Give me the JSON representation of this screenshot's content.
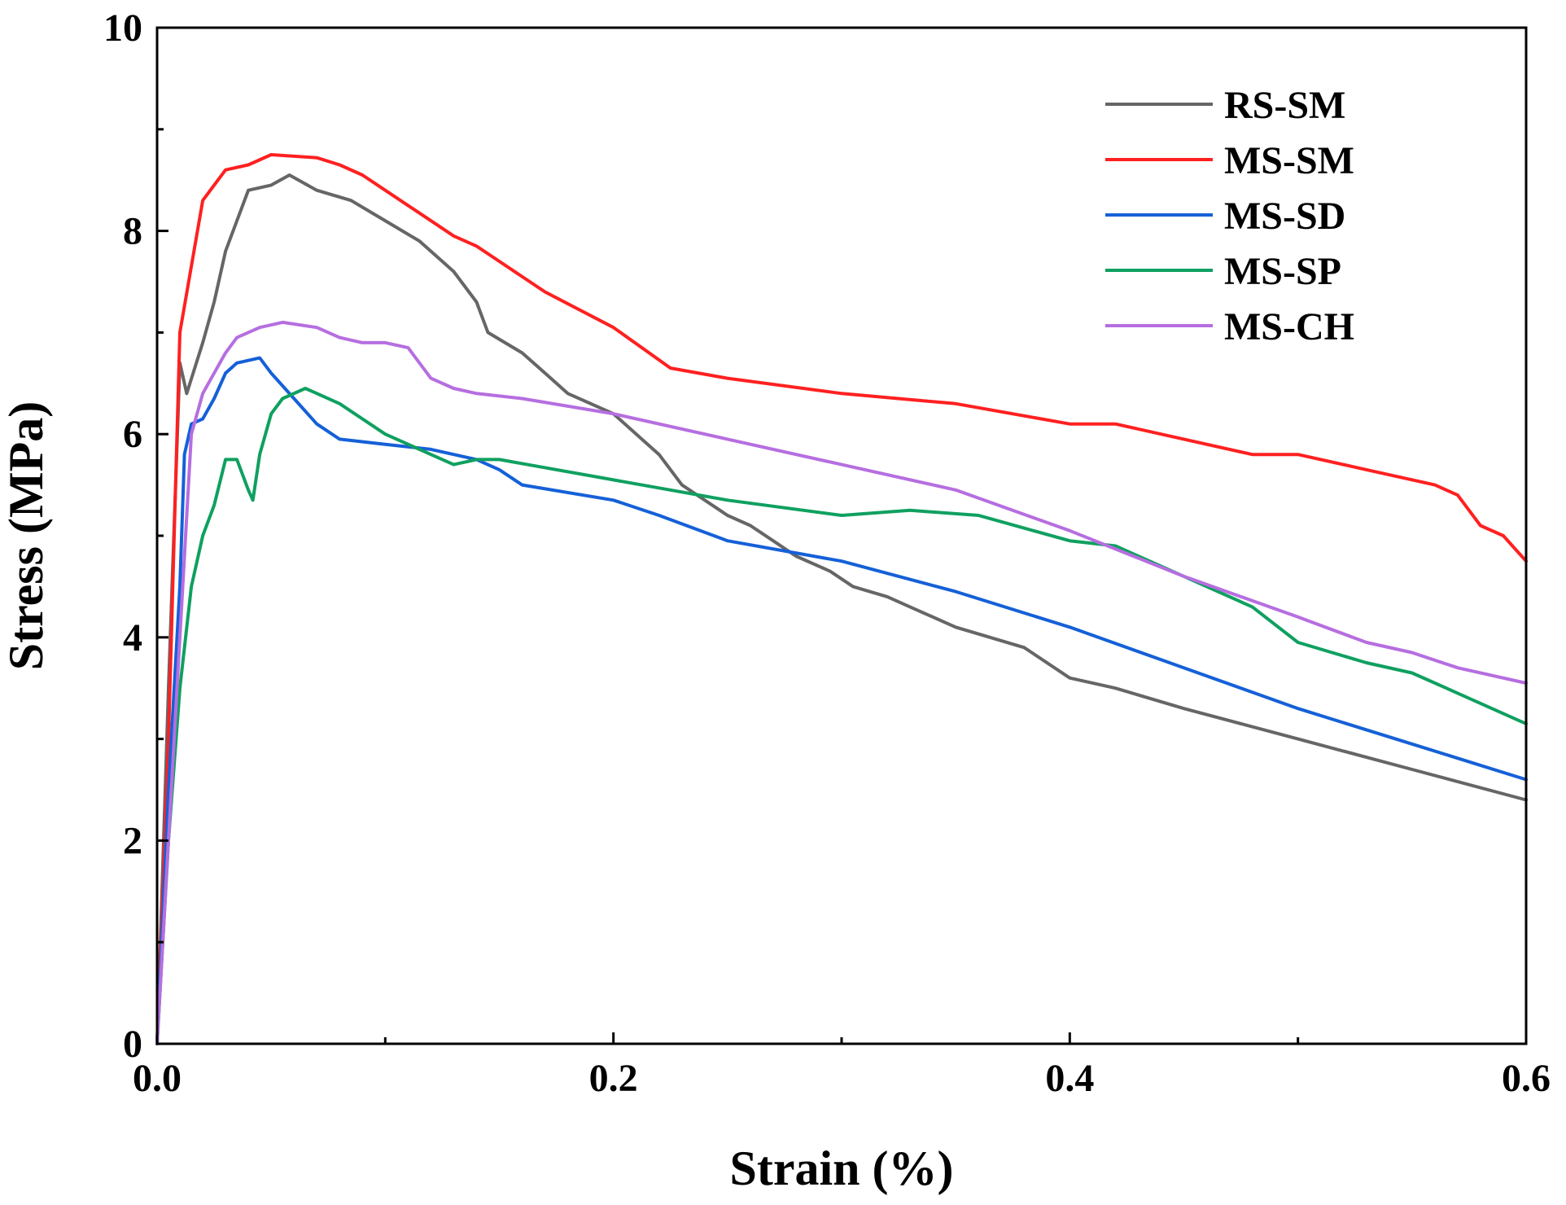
{
  "chart_data": {
    "type": "line",
    "title": "",
    "xlabel": "Strain (%)",
    "ylabel": "Stress (MPa)",
    "xlim": [
      0,
      0.6
    ],
    "ylim": [
      0,
      10
    ],
    "xticks": [
      0.0,
      0.2,
      0.4,
      0.6
    ],
    "xtick_labels": [
      "0.0",
      "0.2",
      "0.4",
      "0.6"
    ],
    "yticks": [
      0,
      2,
      4,
      6,
      8,
      10
    ],
    "ytick_labels": [
      "0",
      "2",
      "4",
      "6",
      "8",
      "10"
    ],
    "grid": false,
    "legend_position": "top-right",
    "series": [
      {
        "name": "RS-SM",
        "color": "#666666",
        "points": [
          [
            0,
            0
          ],
          [
            0.005,
            3.5
          ],
          [
            0.01,
            6.7
          ],
          [
            0.013,
            6.4
          ],
          [
            0.02,
            6.9
          ],
          [
            0.025,
            7.3
          ],
          [
            0.03,
            7.8
          ],
          [
            0.035,
            8.1
          ],
          [
            0.04,
            8.4
          ],
          [
            0.05,
            8.45
          ],
          [
            0.058,
            8.55
          ],
          [
            0.07,
            8.4
          ],
          [
            0.085,
            8.3
          ],
          [
            0.1,
            8.1
          ],
          [
            0.115,
            7.9
          ],
          [
            0.13,
            7.6
          ],
          [
            0.14,
            7.3
          ],
          [
            0.145,
            7.0
          ],
          [
            0.16,
            6.8
          ],
          [
            0.17,
            6.6
          ],
          [
            0.18,
            6.4
          ],
          [
            0.2,
            6.2
          ],
          [
            0.21,
            6.0
          ],
          [
            0.22,
            5.8
          ],
          [
            0.23,
            5.5
          ],
          [
            0.25,
            5.2
          ],
          [
            0.26,
            5.1
          ],
          [
            0.27,
            4.95
          ],
          [
            0.28,
            4.8
          ],
          [
            0.295,
            4.65
          ],
          [
            0.305,
            4.5
          ],
          [
            0.32,
            4.4
          ],
          [
            0.33,
            4.3
          ],
          [
            0.35,
            4.1
          ],
          [
            0.38,
            3.9
          ],
          [
            0.4,
            3.6
          ],
          [
            0.42,
            3.5
          ],
          [
            0.45,
            3.3
          ],
          [
            0.5,
            3.0
          ],
          [
            0.55,
            2.7
          ],
          [
            0.6,
            2.4
          ]
        ]
      },
      {
        "name": "MS-SM",
        "color": "#ff2020",
        "points": [
          [
            0,
            0
          ],
          [
            0.005,
            3.0
          ],
          [
            0.01,
            7.0
          ],
          [
            0.02,
            8.3
          ],
          [
            0.03,
            8.6
          ],
          [
            0.04,
            8.65
          ],
          [
            0.05,
            8.75
          ],
          [
            0.07,
            8.72
          ],
          [
            0.08,
            8.65
          ],
          [
            0.09,
            8.55
          ],
          [
            0.1,
            8.4
          ],
          [
            0.11,
            8.25
          ],
          [
            0.12,
            8.1
          ],
          [
            0.13,
            7.95
          ],
          [
            0.14,
            7.85
          ],
          [
            0.15,
            7.7
          ],
          [
            0.17,
            7.4
          ],
          [
            0.2,
            7.05
          ],
          [
            0.225,
            6.65
          ],
          [
            0.25,
            6.55
          ],
          [
            0.3,
            6.4
          ],
          [
            0.35,
            6.3
          ],
          [
            0.4,
            6.1
          ],
          [
            0.42,
            6.1
          ],
          [
            0.45,
            5.95
          ],
          [
            0.48,
            5.8
          ],
          [
            0.5,
            5.8
          ],
          [
            0.53,
            5.65
          ],
          [
            0.56,
            5.5
          ],
          [
            0.57,
            5.4
          ],
          [
            0.58,
            5.1
          ],
          [
            0.59,
            5.0
          ],
          [
            0.6,
            4.75
          ]
        ]
      },
      {
        "name": "MS-SD",
        "color": "#1560d8",
        "points": [
          [
            0,
            0
          ],
          [
            0.005,
            2.5
          ],
          [
            0.01,
            4.5
          ],
          [
            0.012,
            5.8
          ],
          [
            0.015,
            6.1
          ],
          [
            0.02,
            6.15
          ],
          [
            0.025,
            6.35
          ],
          [
            0.03,
            6.6
          ],
          [
            0.035,
            6.7
          ],
          [
            0.045,
            6.75
          ],
          [
            0.05,
            6.6
          ],
          [
            0.06,
            6.35
          ],
          [
            0.07,
            6.1
          ],
          [
            0.08,
            5.95
          ],
          [
            0.1,
            5.9
          ],
          [
            0.12,
            5.85
          ],
          [
            0.14,
            5.75
          ],
          [
            0.15,
            5.65
          ],
          [
            0.16,
            5.5
          ],
          [
            0.2,
            5.35
          ],
          [
            0.22,
            5.2
          ],
          [
            0.25,
            4.95
          ],
          [
            0.3,
            4.75
          ],
          [
            0.35,
            4.45
          ],
          [
            0.4,
            4.1
          ],
          [
            0.45,
            3.7
          ],
          [
            0.5,
            3.3
          ],
          [
            0.55,
            2.95
          ],
          [
            0.6,
            2.6
          ]
        ]
      },
      {
        "name": "MS-SP",
        "color": "#0fa060",
        "points": [
          [
            0,
            0
          ],
          [
            0.005,
            2.0
          ],
          [
            0.01,
            3.5
          ],
          [
            0.015,
            4.5
          ],
          [
            0.02,
            5.0
          ],
          [
            0.025,
            5.3
          ],
          [
            0.03,
            5.75
          ],
          [
            0.035,
            5.75
          ],
          [
            0.04,
            5.45
          ],
          [
            0.042,
            5.35
          ],
          [
            0.045,
            5.8
          ],
          [
            0.05,
            6.2
          ],
          [
            0.055,
            6.35
          ],
          [
            0.065,
            6.45
          ],
          [
            0.08,
            6.3
          ],
          [
            0.1,
            6.0
          ],
          [
            0.12,
            5.8
          ],
          [
            0.13,
            5.7
          ],
          [
            0.14,
            5.75
          ],
          [
            0.15,
            5.75
          ],
          [
            0.2,
            5.55
          ],
          [
            0.25,
            5.35
          ],
          [
            0.3,
            5.2
          ],
          [
            0.33,
            5.25
          ],
          [
            0.36,
            5.2
          ],
          [
            0.4,
            4.95
          ],
          [
            0.42,
            4.9
          ],
          [
            0.45,
            4.6
          ],
          [
            0.48,
            4.3
          ],
          [
            0.5,
            3.95
          ],
          [
            0.53,
            3.75
          ],
          [
            0.55,
            3.65
          ],
          [
            0.57,
            3.45
          ],
          [
            0.6,
            3.15
          ]
        ]
      },
      {
        "name": "MS-CH",
        "color": "#b66ee0",
        "points": [
          [
            0,
            0
          ],
          [
            0.005,
            2.0
          ],
          [
            0.01,
            4.0
          ],
          [
            0.015,
            6.0
          ],
          [
            0.02,
            6.4
          ],
          [
            0.025,
            6.6
          ],
          [
            0.03,
            6.8
          ],
          [
            0.035,
            6.95
          ],
          [
            0.045,
            7.05
          ],
          [
            0.055,
            7.1
          ],
          [
            0.07,
            7.05
          ],
          [
            0.08,
            6.95
          ],
          [
            0.09,
            6.9
          ],
          [
            0.1,
            6.9
          ],
          [
            0.11,
            6.85
          ],
          [
            0.12,
            6.55
          ],
          [
            0.13,
            6.45
          ],
          [
            0.14,
            6.4
          ],
          [
            0.16,
            6.35
          ],
          [
            0.2,
            6.2
          ],
          [
            0.25,
            5.95
          ],
          [
            0.3,
            5.7
          ],
          [
            0.35,
            5.45
          ],
          [
            0.4,
            5.05
          ],
          [
            0.45,
            4.6
          ],
          [
            0.5,
            4.2
          ],
          [
            0.53,
            3.95
          ],
          [
            0.55,
            3.85
          ],
          [
            0.57,
            3.7
          ],
          [
            0.6,
            3.55
          ]
        ]
      }
    ]
  }
}
